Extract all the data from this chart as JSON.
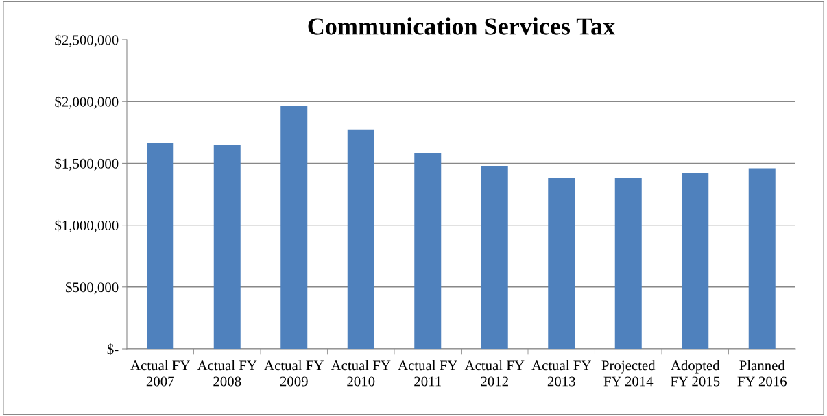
{
  "chart_data": {
    "type": "bar",
    "title": "Communication Services Tax",
    "categories": [
      "Actual FY\n2007",
      "Actual FY\n2008",
      "Actual FY\n2009",
      "Actual FY\n2010",
      "Actual FY\n2011",
      "Actual FY\n2012",
      "Actual FY\n2013",
      "Projected\nFY 2014",
      "Adopted\nFY 2015",
      "Planned\nFY 2016"
    ],
    "values": [
      1665000,
      1650000,
      1965000,
      1775000,
      1585000,
      1480000,
      1380000,
      1385000,
      1425000,
      1460000
    ],
    "color": "#4f81bd",
    "ylim": [
      0,
      2500000
    ],
    "yticks": [
      {
        "value": 0,
        "label": "$-"
      },
      {
        "value": 500000,
        "label": "$500,000"
      },
      {
        "value": 1000000,
        "label": "$1,000,000"
      },
      {
        "value": 1500000,
        "label": "$1,500,000"
      },
      {
        "value": 2000000,
        "label": "$2,000,000"
      },
      {
        "value": 2500000,
        "label": "$2,500,000"
      }
    ],
    "grid": "y",
    "legend": false
  }
}
